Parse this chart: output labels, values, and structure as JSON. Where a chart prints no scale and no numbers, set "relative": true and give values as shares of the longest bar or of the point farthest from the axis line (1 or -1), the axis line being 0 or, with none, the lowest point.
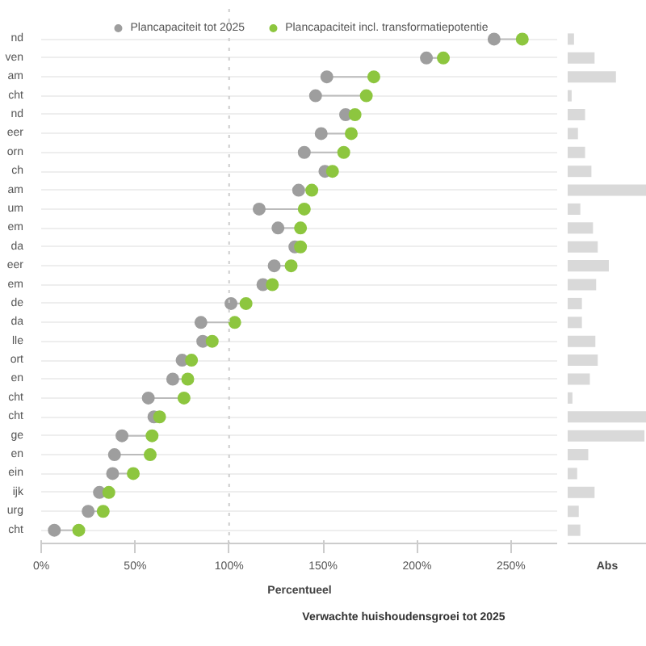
{
  "chart_data": [
    {
      "type": "scatter",
      "orientation": "horizontal",
      "categories": [
        "nd",
        "ven",
        "am",
        "cht",
        "nd",
        "eer",
        "orn",
        "ch",
        "am",
        "um",
        "em",
        "da",
        "eer",
        "em",
        "de",
        "da",
        "lle",
        "ort",
        "en",
        "cht",
        "cht",
        "ge",
        "en",
        "ein",
        "ijk",
        "urg",
        "cht"
      ],
      "series": [
        {
          "name": "Plancapaciteit tot 2025",
          "color": "#9e9e9e",
          "values": [
            241,
            205,
            152,
            146,
            162,
            149,
            140,
            151,
            137,
            116,
            126,
            135,
            124,
            118,
            101,
            85,
            86,
            75,
            70,
            57,
            60,
            43,
            39,
            38,
            31,
            25,
            7
          ]
        },
        {
          "name": "Plancapaciteit incl. transformatiepotentie",
          "color": "#8dc63f",
          "values": [
            256,
            214,
            177,
            173,
            167,
            165,
            161,
            155,
            144,
            140,
            138,
            138,
            133,
            123,
            109,
            103,
            91,
            80,
            78,
            76,
            63,
            59,
            58,
            49,
            36,
            33,
            20
          ]
        }
      ],
      "xlim": [
        0,
        275
      ],
      "xticks": [
        {
          "value": 0,
          "label": "0%"
        },
        {
          "value": 50,
          "label": "50%"
        },
        {
          "value": 100,
          "label": "100%"
        },
        {
          "value": 150,
          "label": "150%"
        },
        {
          "value": 200,
          "label": "200%"
        },
        {
          "value": 250,
          "label": "250%"
        }
      ],
      "xlabel": "Percentueel",
      "ref_lines": [
        {
          "axis": "x",
          "value": 100,
          "color": "#cccccc",
          "line_style": "dotted"
        }
      ],
      "grid": "y",
      "legend": "top",
      "marker": "circle",
      "annotations": [
        "Verwachte huishoudensgroei tot 2025"
      ]
    },
    {
      "type": "bar",
      "orientation": "horizontal",
      "relative": true,
      "categories": [
        null,
        null,
        null,
        null,
        null,
        null,
        null,
        null,
        null,
        null,
        null,
        null,
        null,
        null,
        null,
        null,
        null,
        null,
        null,
        null,
        null,
        null,
        null,
        null,
        null,
        null,
        null
      ],
      "values": [
        0.08,
        0.34,
        0.61,
        0.05,
        0.22,
        0.13,
        0.22,
        0.3,
        1,
        0.16,
        0.32,
        0.38,
        0.52,
        0.36,
        0.18,
        0.18,
        0.35,
        0.38,
        0.28,
        0.06,
        1,
        0.97,
        0.26,
        0.12,
        0.34,
        0.14,
        0.16
      ],
      "color": "#d9d9d9",
      "xlabel": "Abs"
    }
  ]
}
